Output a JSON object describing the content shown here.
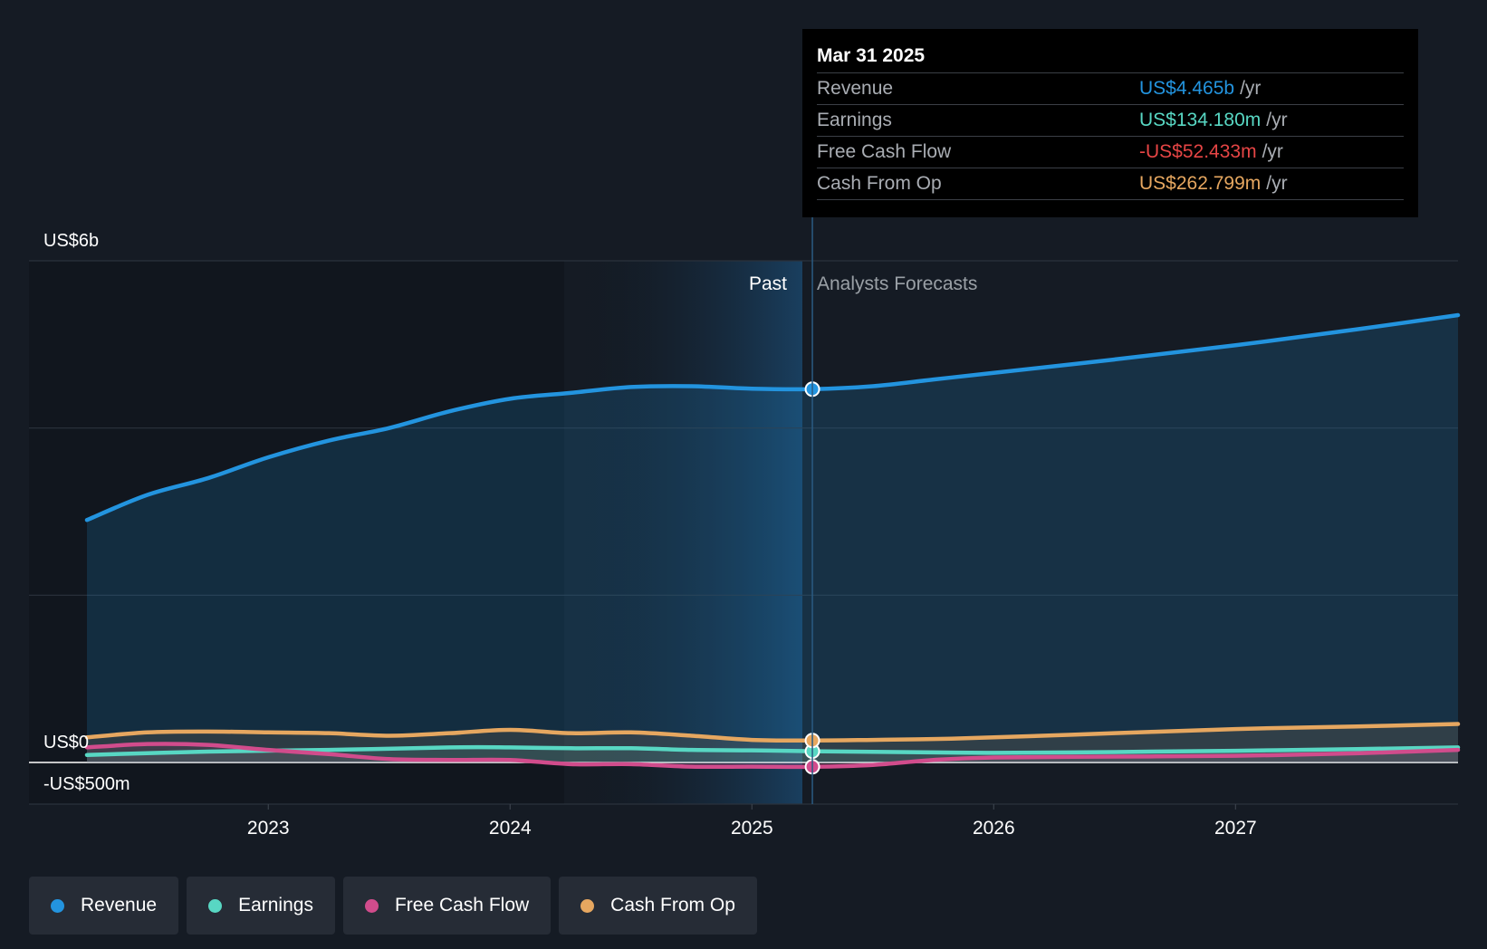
{
  "chart_data": {
    "type": "line",
    "y_axis": {
      "top_label": "US$6b",
      "zero_label": "US$0",
      "bottom_label": "-US$500m",
      "ylim": [
        -500,
        6000
      ]
    },
    "x_axis": {
      "ticks": [
        "2023",
        "2024",
        "2025",
        "2026",
        "2027"
      ],
      "xlim": [
        2022.25,
        2027.92
      ]
    },
    "regions": {
      "past_label": "Past",
      "forecast_label": "Analysts Forecasts",
      "divider_x": 2025.25
    },
    "series": [
      {
        "name": "Revenue",
        "color": "#2394df",
        "x": [
          2022.25,
          2022.5,
          2022.75,
          2023.0,
          2023.25,
          2023.5,
          2023.75,
          2024.0,
          2024.25,
          2024.5,
          2024.75,
          2025.0,
          2025.25,
          2025.5,
          2025.75,
          2026.0,
          2026.5,
          2027.0,
          2027.5,
          2027.92
        ],
        "y": [
          2900,
          3200,
          3400,
          3650,
          3850,
          4000,
          4200,
          4350,
          4420,
          4490,
          4500,
          4470,
          4465,
          4500,
          4580,
          4660,
          4820,
          4990,
          5180,
          5350
        ]
      },
      {
        "name": "Earnings",
        "color": "#58d7c3",
        "x": [
          2022.25,
          2022.75,
          2023.25,
          2023.75,
          2024.0,
          2024.25,
          2024.5,
          2024.75,
          2025.0,
          2025.25,
          2025.75,
          2026.0,
          2026.5,
          2027.0,
          2027.5,
          2027.92
        ],
        "y": [
          90,
          130,
          150,
          180,
          180,
          170,
          170,
          150,
          145,
          134,
          120,
          115,
          125,
          140,
          160,
          180
        ]
      },
      {
        "name": "Free Cash Flow",
        "color": "#d14c8c",
        "x": [
          2022.25,
          2022.5,
          2022.75,
          2023.0,
          2023.25,
          2023.5,
          2023.75,
          2024.0,
          2024.25,
          2024.5,
          2024.75,
          2025.0,
          2025.25,
          2025.5,
          2025.75,
          2026.0,
          2026.5,
          2027.0,
          2027.5,
          2027.92
        ],
        "y": [
          180,
          220,
          210,
          150,
          100,
          40,
          30,
          30,
          -20,
          -20,
          -50,
          -50,
          -52,
          -30,
          30,
          60,
          70,
          80,
          110,
          150
        ]
      },
      {
        "name": "Cash From Op",
        "color": "#e6a760",
        "x": [
          2022.25,
          2022.5,
          2022.75,
          2023.0,
          2023.25,
          2023.5,
          2023.75,
          2024.0,
          2024.25,
          2024.5,
          2024.75,
          2025.0,
          2025.25,
          2025.5,
          2025.75,
          2026.0,
          2026.5,
          2027.0,
          2027.5,
          2027.92
        ],
        "y": [
          300,
          360,
          370,
          360,
          350,
          320,
          350,
          390,
          350,
          360,
          320,
          270,
          263,
          270,
          280,
          300,
          350,
          400,
          430,
          460
        ]
      }
    ],
    "markers_x": 2025.25
  },
  "tooltip": {
    "date": "Mar 31 2025",
    "rows": [
      {
        "label": "Revenue",
        "value": "US$4.465b",
        "unit": "/yr",
        "color": "#2394df"
      },
      {
        "label": "Earnings",
        "value": "US$134.180m",
        "unit": "/yr",
        "color": "#58d7c3"
      },
      {
        "label": "Free Cash Flow",
        "value": "-US$52.433m",
        "unit": "/yr",
        "color": "#e64545"
      },
      {
        "label": "Cash From Op",
        "value": "US$262.799m",
        "unit": "/yr",
        "color": "#e6a760"
      }
    ]
  },
  "legend": [
    {
      "label": "Revenue",
      "color": "#2394df"
    },
    {
      "label": "Earnings",
      "color": "#58d7c3"
    },
    {
      "label": "Free Cash Flow",
      "color": "#d14c8c"
    },
    {
      "label": "Cash From Op",
      "color": "#e6a760"
    }
  ]
}
